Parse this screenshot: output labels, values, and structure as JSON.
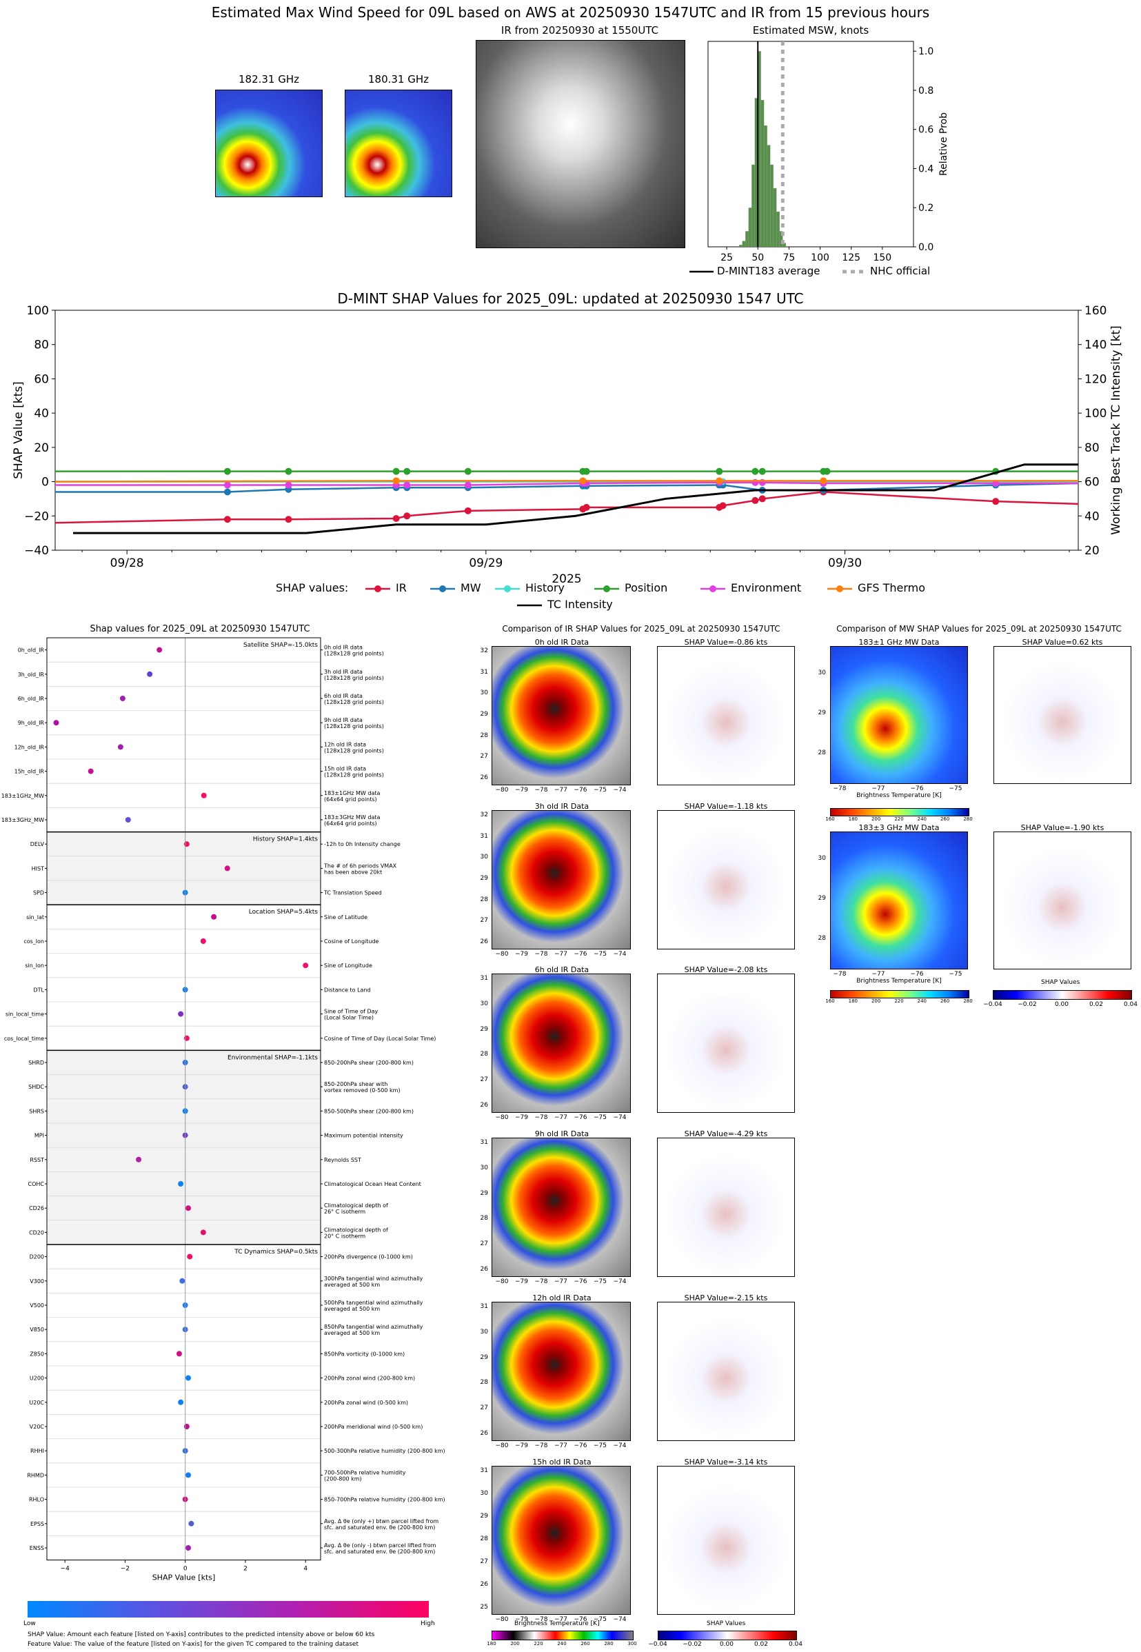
{
  "header": {
    "main_title": "Estimated Max Wind Speed for 09L based on AWS at 20250930 1547UTC and IR from 15 previous hours",
    "mw1_title": "182.31 GHz",
    "mw2_title": "180.31 GHz",
    "ir_title": "IR from 20250930 at 1550UTC",
    "msw_title": "Estimated MSW, knots",
    "msw_ylabel": "Relative Prob",
    "msw_xticks": [
      "25",
      "50",
      "75",
      "100",
      "125",
      "150"
    ],
    "msw_yticks": [
      "0.0",
      "0.2",
      "0.4",
      "0.6",
      "0.8",
      "1.0"
    ],
    "legend_dmint": "D-MINT183 average",
    "legend_nhc": "NHC official"
  },
  "timeseries": {
    "title": "D-MINT SHAP Values for 2025_09L: updated at 20250930 1547 UTC",
    "ylabel_left": "SHAP Value [kts]",
    "ylabel_right": "Working Best Track TC Intensity [kt]",
    "xlabel": "2025",
    "xticks": [
      "09/28",
      "09/29",
      "09/30"
    ],
    "yticks_left": [
      "100",
      "80",
      "60",
      "40",
      "20",
      "0",
      "−20",
      "−40"
    ],
    "yticks_right": [
      "160",
      "140",
      "120",
      "100",
      "80",
      "60",
      "40",
      "20"
    ],
    "legend_title": "SHAP values:",
    "legend": [
      {
        "name": "IR",
        "color": "#dc143c"
      },
      {
        "name": "MW",
        "color": "#1f77b4"
      },
      {
        "name": "History",
        "color": "#40e0d0"
      },
      {
        "name": "Position",
        "color": "#2ca02c"
      },
      {
        "name": "Environment",
        "color": "#e040e0"
      },
      {
        "name": "GFS Thermo",
        "color": "#ff7f0e"
      }
    ],
    "legend_tc": "TC Intensity"
  },
  "shap_panel": {
    "title": "Shap values for 2025_09L at 20250930 1547UTC",
    "xlabel": "SHAP Value [kts]",
    "xticks": [
      "−4",
      "−2",
      "0",
      "2",
      "4"
    ],
    "groups": [
      {
        "label": "Satellite SHAP=-15.0kts"
      },
      {
        "label": "History SHAP=1.4kts"
      },
      {
        "label": "Location SHAP=5.4kts"
      },
      {
        "label": "Environmental SHAP=-1.1kts"
      },
      {
        "label": "TC Dynamics SHAP=0.5kts"
      }
    ],
    "cbar_low": "Low",
    "cbar_high": "High",
    "note1": "SHAP Value: Amount each feature [listed on Y-axis] contributes to the predicted intensity above or below 60 kts",
    "note2": "Feature Value: The value of the feature [listed on Y-axis] for the given TC compared to the training dataset"
  },
  "features": [
    {
      "name": "0h_old_IR",
      "desc1": "0h old IR data",
      "desc2": "(128x128 grid points)",
      "shap": -0.86,
      "color": "#c01090"
    },
    {
      "name": "3h_old_IR",
      "desc1": "3h old IR data",
      "desc2": "(128x128 grid points)",
      "shap": -1.18,
      "color": "#6040d0"
    },
    {
      "name": "6h_old_IR",
      "desc1": "6h old IR data",
      "desc2": "(128x128 grid points)",
      "shap": -2.08,
      "color": "#a020b0"
    },
    {
      "name": "9h_old_IR",
      "desc1": "9h old IR data",
      "desc2": "(128x128 grid points)",
      "shap": -4.29,
      "color": "#b010a0"
    },
    {
      "name": "12h_old_IR",
      "desc1": "12h old IR data",
      "desc2": "(128x128 grid points)",
      "shap": -2.15,
      "color": "#a020b0"
    },
    {
      "name": "15h_old_IR",
      "desc1": "15h old IR data",
      "desc2": "(128x128 grid points)",
      "shap": -3.14,
      "color": "#c01090"
    },
    {
      "name": "183±1GHz_MW",
      "desc1": "183±1GHz MW data",
      "desc2": "(64x64 grid points)",
      "shap": 0.62,
      "color": "#f0106a"
    },
    {
      "name": "183±3GHz_MW",
      "desc1": "183±3GHz MW data",
      "desc2": "(64x64 grid points)",
      "shap": -1.9,
      "color": "#6050d0"
    },
    {
      "name": "DELV",
      "desc1": "-12h to 0h Intensity change",
      "desc2": "",
      "shap": 0.05,
      "color": "#f0106a"
    },
    {
      "name": "HIST",
      "desc1": "The # of 6h periods VMAX",
      "desc2": "has been above 20kt",
      "shap": 1.4,
      "color": "#d01080"
    },
    {
      "name": "SPD",
      "desc1": "TC Translation Speed",
      "desc2": "",
      "shap": 0.0,
      "color": "#1080f0"
    },
    {
      "name": "sin_lat",
      "desc1": "Sine of Latitude",
      "desc2": "",
      "shap": 0.95,
      "color": "#c01090"
    },
    {
      "name": "cos_lon",
      "desc1": "Cosine of Longitude",
      "desc2": "",
      "shap": 0.6,
      "color": "#f0106a"
    },
    {
      "name": "sin_lon",
      "desc1": "Sine of Longitude",
      "desc2": "",
      "shap": 4.0,
      "color": "#f0106a"
    },
    {
      "name": "DTL",
      "desc1": "Distance to Land",
      "desc2": "",
      "shap": 0.0,
      "color": "#1080f0"
    },
    {
      "name": "sin_local_time",
      "desc1": "Sine of Time of Day",
      "desc2": "(Local Solar Time)",
      "shap": -0.15,
      "color": "#8030c0"
    },
    {
      "name": "cos_local_time",
      "desc1": "Cosine of Time of Day (Local Solar Time)",
      "desc2": "",
      "shap": 0.05,
      "color": "#f0106a"
    },
    {
      "name": "SHRD",
      "desc1": "850-200hPa shear (200-800 km)",
      "desc2": "",
      "shap": 0.0,
      "color": "#3070e0"
    },
    {
      "name": "SHDC",
      "desc1": "850-200hPa shear with",
      "desc2": "vortex removed (0-500 km)",
      "shap": 0.0,
      "color": "#5060d0"
    },
    {
      "name": "SHRS",
      "desc1": "850-500hPa shear (200-800 km)",
      "desc2": "",
      "shap": 0.0,
      "color": "#1080f0"
    },
    {
      "name": "MPI",
      "desc1": "Maximum potential intensity",
      "desc2": "",
      "shap": 0.0,
      "color": "#7040c0"
    },
    {
      "name": "RSST",
      "desc1": "Reynolds SST",
      "desc2": "",
      "shap": -1.55,
      "color": "#b020a0"
    },
    {
      "name": "COHC",
      "desc1": "Climatological Ocean Heat Content",
      "desc2": "",
      "shap": -0.15,
      "color": "#1080f0"
    },
    {
      "name": "CD26",
      "desc1": "Climatological depth of",
      "desc2": "26° C isotherm",
      "shap": 0.1,
      "color": "#d01080"
    },
    {
      "name": "CD20",
      "desc1": "Climatological depth of",
      "desc2": "20° C isotherm",
      "shap": 0.6,
      "color": "#e01070"
    },
    {
      "name": "D200",
      "desc1": "200hPa divergence (0-1000 km)",
      "desc2": "",
      "shap": 0.15,
      "color": "#f0106a"
    },
    {
      "name": "V300",
      "desc1": "300hPa tangential wind azimuthally",
      "desc2": "averaged at 500 km",
      "shap": -0.1,
      "color": "#4070e0"
    },
    {
      "name": "V500",
      "desc1": "500hPa tangential wind azimuthally",
      "desc2": "averaged at 500 km",
      "shap": 0.0,
      "color": "#2080f0"
    },
    {
      "name": "V850",
      "desc1": "850hPa tangential wind azimuthally",
      "desc2": "averaged at 500 km",
      "shap": 0.0,
      "color": "#4070e0"
    },
    {
      "name": "Z850",
      "desc1": "850hPa vorticity (0-1000 km)",
      "desc2": "",
      "shap": -0.2,
      "color": "#d01080"
    },
    {
      "name": "U200",
      "desc1": "200hPa zonal wind (200-800 km)",
      "desc2": "",
      "shap": 0.1,
      "color": "#1080f0"
    },
    {
      "name": "U20C",
      "desc1": "200hPa zonal wind (0-500 km)",
      "desc2": "",
      "shap": -0.15,
      "color": "#1080f0"
    },
    {
      "name": "V20C",
      "desc1": "200hPa meridional wind (0-500 km)",
      "desc2": "",
      "shap": 0.05,
      "color": "#c01090"
    },
    {
      "name": "RHHI",
      "desc1": "500-300hPa relative humidity (200-800 km)",
      "desc2": "",
      "shap": 0.0,
      "color": "#3070e0"
    },
    {
      "name": "RHMD",
      "desc1": "700-500hPa relative humidity",
      "desc2": "(200-800 km)",
      "shap": 0.1,
      "color": "#1080f0"
    },
    {
      "name": "RHLO",
      "desc1": "850-700hPa relative humidity (200-800 km)",
      "desc2": "",
      "shap": 0.0,
      "color": "#d01080"
    },
    {
      "name": "EPSS",
      "desc1": "Avg. Δ θe (only +) btwn parcel lifted from",
      "desc2": "sfc. and saturated env. θe (200-800 km)",
      "shap": 0.2,
      "color": "#5060d0"
    },
    {
      "name": "ENSS",
      "desc1": "Avg. Δ θe (only -) btwn parcel lifted from",
      "desc2": "sfc. and saturated env. θe (200-800 km)",
      "shap": 0.1,
      "color": "#a020b0"
    }
  ],
  "ir_compare": {
    "title": "Comparison of IR SHAP Values for 2025_09L at 20250930 1547UTC",
    "panels": [
      {
        "data_title": "0h old IR Data",
        "shap_title": "SHAP Value=-0.86 kts",
        "yticks": [
          "32",
          "31",
          "30",
          "29",
          "28",
          "27",
          "26"
        ]
      },
      {
        "data_title": "3h old IR Data",
        "shap_title": "SHAP Value=-1.18 kts",
        "yticks": [
          "32",
          "31",
          "30",
          "29",
          "28",
          "27",
          "26"
        ]
      },
      {
        "data_title": "6h old IR Data",
        "shap_title": "SHAP Value=-2.08 kts",
        "yticks": [
          "31",
          "30",
          "29",
          "28",
          "27",
          "26"
        ]
      },
      {
        "data_title": "9h old IR Data",
        "shap_title": "SHAP Value=-4.29 kts",
        "yticks": [
          "31",
          "30",
          "29",
          "28",
          "27",
          "26"
        ]
      },
      {
        "data_title": "12h old IR Data",
        "shap_title": "SHAP Value=-2.15 kts",
        "yticks": [
          "31",
          "30",
          "29",
          "28",
          "27",
          "26"
        ]
      },
      {
        "data_title": "15h old IR Data",
        "shap_title": "SHAP Value=-3.14 kts",
        "yticks": [
          "31",
          "30",
          "29",
          "28",
          "27",
          "26",
          "25"
        ]
      }
    ],
    "xticks": [
      "−80",
      "−79",
      "−78",
      "−77",
      "−76",
      "−75",
      "−74"
    ],
    "cbar_label": "Brightness Temperature [K]",
    "cbar_ticks": [
      "180",
      "200",
      "220",
      "240",
      "260",
      "280",
      "300"
    ],
    "shap_cbar_label": "SHAP Values",
    "shap_cbar_ticks": [
      "−0.04",
      "−0.02",
      "0.00",
      "0.02",
      "0.04"
    ]
  },
  "mw_compare": {
    "title": "Comparison of MW SHAP Values for 2025_09L at 20250930 1547UTC",
    "panels": [
      {
        "data_title": "183±1 GHz MW Data",
        "shap_title": "SHAP Value=0.62 kts",
        "yticks": [
          "30",
          "29",
          "28"
        ]
      },
      {
        "data_title": "183±3 GHz MW Data",
        "shap_title": "SHAP Value=-1.90 kts",
        "yticks": [
          "30",
          "29",
          "28"
        ]
      }
    ],
    "xticks": [
      "−78",
      "−77",
      "−76",
      "−75"
    ],
    "cbar_label": "Brightness Temperature [K]",
    "cbar_ticks": [
      "160",
      "180",
      "200",
      "220",
      "240",
      "260",
      "280"
    ],
    "shap_cbar_label": "SHAP Values",
    "shap_cbar_ticks": [
      "−0.04",
      "−0.02",
      "0.00",
      "0.02",
      "0.04"
    ]
  },
  "chart_data": [
    {
      "type": "bar",
      "title": "Estimated MSW, knots",
      "ylabel": "Relative Prob",
      "xlim": [
        10,
        175
      ],
      "ylim": [
        0,
        1.05
      ],
      "bins": [
        35,
        37.5,
        40,
        42.5,
        45,
        47.5,
        50,
        52.5,
        55,
        57.5,
        60,
        62.5,
        65,
        67.5,
        70
      ],
      "values": [
        0.01,
        0.03,
        0.08,
        0.2,
        0.42,
        0.76,
        1.0,
        0.75,
        0.62,
        0.52,
        0.42,
        0.3,
        0.18,
        0.08,
        0.02
      ],
      "dmint_average": 50,
      "nhc_official": 70
    },
    {
      "type": "line",
      "title": "D-MINT SHAP Values for 2025_09L: updated at 20250930 1547 UTC",
      "xlabel": "2025",
      "ylabel": "SHAP Value [kts]",
      "ylim": [
        -40,
        100
      ],
      "ylim_right": [
        20,
        160
      ],
      "x_day_range": [
        27.8,
        30.65
      ],
      "series": [
        {
          "name": "IR",
          "color": "#dc143c",
          "points": [
            [
              27.8,
              -24
            ],
            [
              28.28,
              -22
            ],
            [
              28.45,
              -22
            ],
            [
              28.75,
              -21.5
            ],
            [
              28.78,
              -20
            ],
            [
              28.95,
              -17
            ],
            [
              29.27,
              -16
            ],
            [
              29.28,
              -15
            ],
            [
              29.65,
              -15
            ],
            [
              29.66,
              -14
            ],
            [
              29.75,
              -11
            ],
            [
              29.77,
              -10
            ],
            [
              29.94,
              -6
            ],
            [
              30.42,
              -11.5
            ],
            [
              30.65,
              -13
            ]
          ]
        },
        {
          "name": "MW",
          "color": "#1f77b4",
          "points": [
            [
              27.8,
              -6
            ],
            [
              28.28,
              -6
            ],
            [
              28.45,
              -4.5
            ],
            [
              28.75,
              -3.5
            ],
            [
              28.78,
              -3.5
            ],
            [
              28.95,
              -3.5
            ],
            [
              29.27,
              -2.5
            ],
            [
              29.28,
              -2.5
            ],
            [
              29.65,
              -2
            ],
            [
              29.66,
              -2
            ],
            [
              29.77,
              -5
            ],
            [
              29.94,
              -5
            ],
            [
              30.42,
              -2
            ],
            [
              30.65,
              -1
            ]
          ]
        },
        {
          "name": "History",
          "color": "#40e0d0",
          "points": [
            [
              27.8,
              0
            ],
            [
              29.27,
              0
            ],
            [
              29.66,
              0
            ],
            [
              30.65,
              0
            ]
          ]
        },
        {
          "name": "Position",
          "color": "#2ca02c",
          "points": [
            [
              27.8,
              6
            ],
            [
              28.28,
              6
            ],
            [
              28.45,
              6
            ],
            [
              28.75,
              6
            ],
            [
              28.78,
              6
            ],
            [
              28.95,
              6
            ],
            [
              29.27,
              6
            ],
            [
              29.28,
              6
            ],
            [
              29.65,
              6
            ],
            [
              29.75,
              6
            ],
            [
              29.77,
              6
            ],
            [
              29.94,
              6
            ],
            [
              29.95,
              6
            ],
            [
              30.42,
              6
            ],
            [
              30.65,
              6
            ]
          ]
        },
        {
          "name": "Environment",
          "color": "#e040e0",
          "points": [
            [
              27.8,
              -2
            ],
            [
              28.28,
              -2
            ],
            [
              28.45,
              -2
            ],
            [
              28.75,
              -2
            ],
            [
              28.78,
              -2
            ],
            [
              28.95,
              -2
            ],
            [
              29.27,
              -1
            ],
            [
              29.28,
              -1
            ],
            [
              29.65,
              -0.5
            ],
            [
              29.75,
              -0.5
            ],
            [
              29.77,
              -0.5
            ],
            [
              29.94,
              -1
            ],
            [
              30.42,
              -1
            ],
            [
              30.65,
              -1
            ]
          ]
        },
        {
          "name": "GFS Thermo",
          "color": "#ff7f0e",
          "points": [
            [
              27.8,
              0
            ],
            [
              28.75,
              0.5
            ],
            [
              29.27,
              0.5
            ],
            [
              29.65,
              0.5
            ],
            [
              29.94,
              0.5
            ],
            [
              30.65,
              0.5
            ]
          ]
        }
      ],
      "tc_intensity": {
        "name": "TC Intensity",
        "color": "#000000",
        "points": [
          [
            27.85,
            30
          ],
          [
            28.5,
            30
          ],
          [
            28.75,
            35
          ],
          [
            29.0,
            35
          ],
          [
            29.25,
            40
          ],
          [
            29.5,
            50
          ],
          [
            29.75,
            55
          ],
          [
            30.0,
            55
          ],
          [
            30.25,
            55
          ],
          [
            30.5,
            70
          ],
          [
            30.65,
            70
          ]
        ]
      }
    },
    {
      "type": "scatter",
      "title": "Shap values for 2025_09L at 20250930 1547UTC",
      "xlabel": "SHAP Value [kts]",
      "xlim": [
        -4.6,
        4.5
      ]
    }
  ]
}
